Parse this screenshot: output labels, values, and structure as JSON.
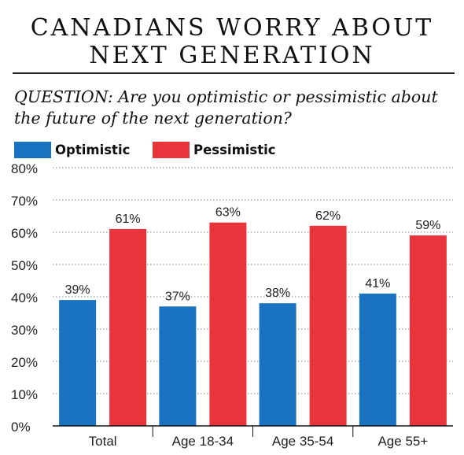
{
  "title_lines": [
    "CANADIANS WORRY ABOUT",
    "NEXT GENERATION"
  ],
  "question": "QUESTION: Are you optimistic or pessimistic about the future of the next generation?",
  "colors": {
    "optimistic": "#1a73c0",
    "pessimistic": "#e8353c"
  },
  "chart_data": {
    "type": "bar",
    "categories": [
      "Total",
      "Age 18-34",
      "Age 35-54",
      "Age 55+"
    ],
    "series": [
      {
        "name": "Optimistic",
        "values": [
          39,
          37,
          38,
          41
        ],
        "labels": [
          "39%",
          "37%",
          "38%",
          "41%"
        ]
      },
      {
        "name": "Pessimistic",
        "values": [
          61,
          63,
          62,
          59
        ],
        "labels": [
          "61%",
          "63%",
          "62%",
          "59%"
        ]
      }
    ],
    "ylim": [
      0,
      80
    ],
    "yticks": [
      0,
      10,
      20,
      30,
      40,
      50,
      60,
      70,
      80
    ],
    "ytick_labels": [
      "0%",
      "10%",
      "20%",
      "30%",
      "40%",
      "50%",
      "60%",
      "70%",
      "80%"
    ],
    "grid": true,
    "legend_position": "top-left"
  }
}
